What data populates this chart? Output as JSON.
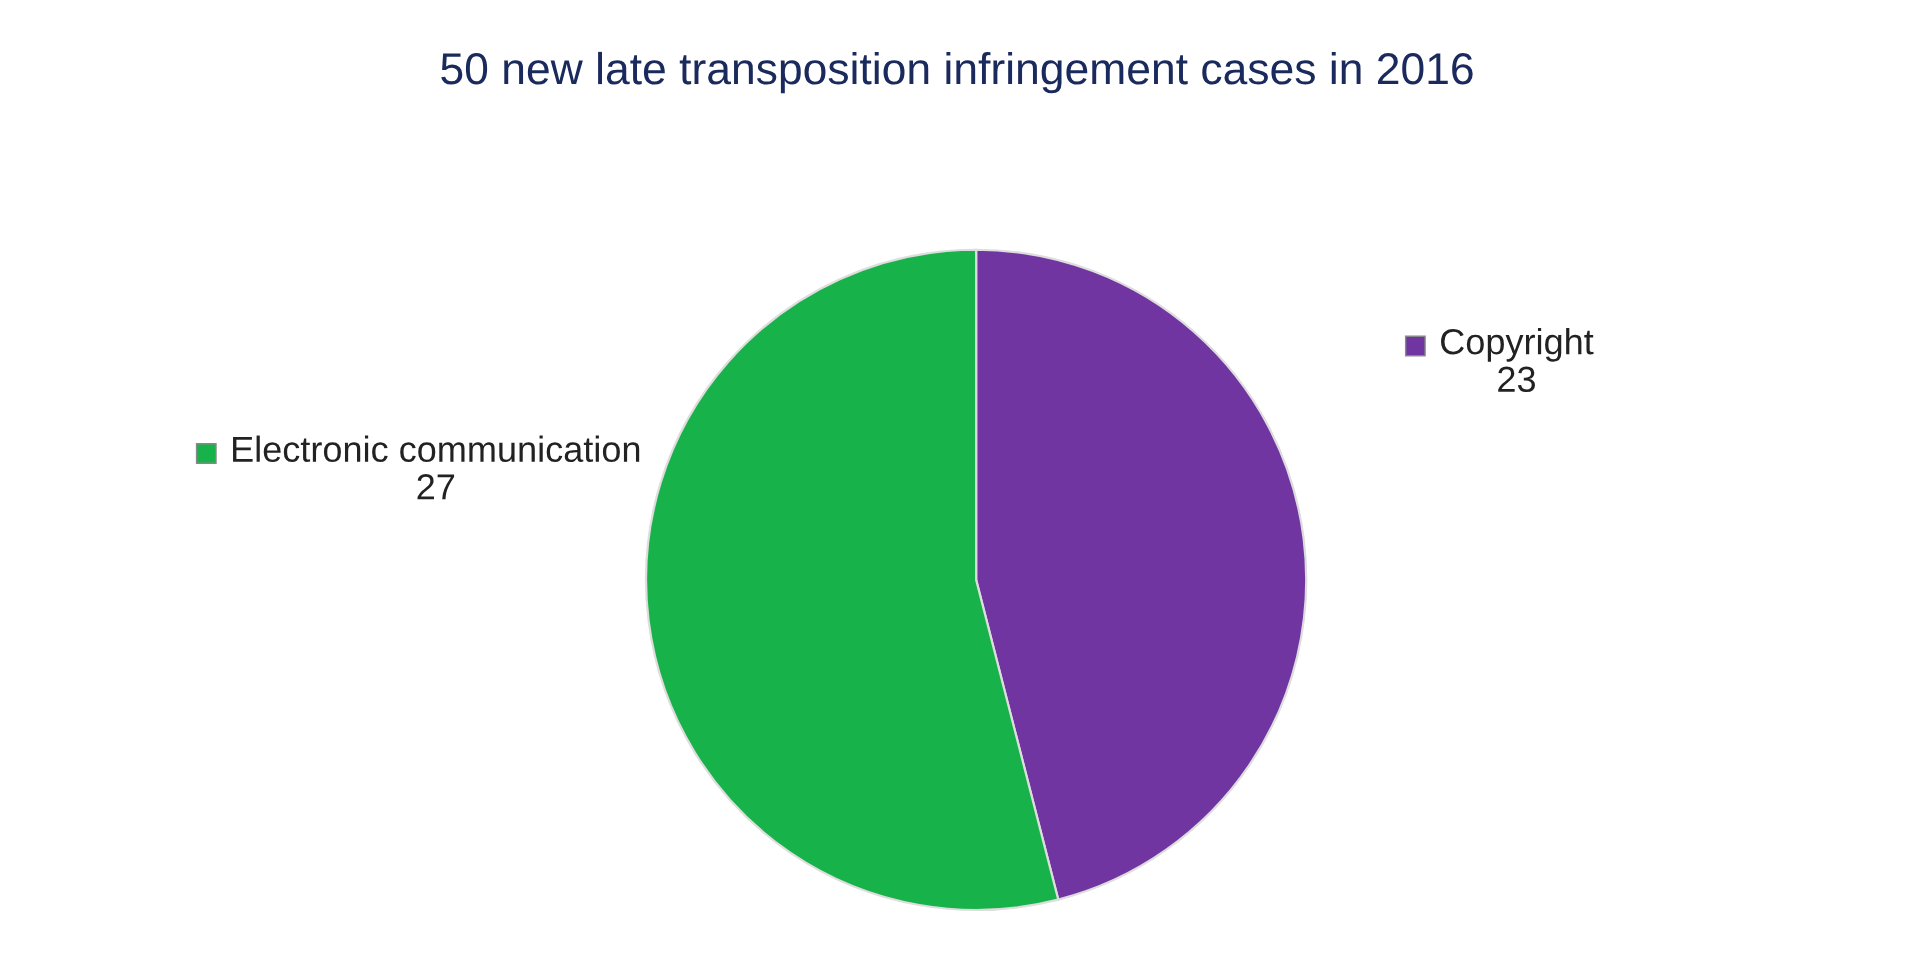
{
  "chart_data": {
    "type": "pie",
    "title": "50 new late transposition infringement cases in 2016",
    "categories": [
      "Copyright",
      "Electronic communication"
    ],
    "values": [
      23,
      27
    ],
    "colors": [
      "#7035a0",
      "#17b24a"
    ],
    "data_labels": true,
    "legend": "top"
  }
}
